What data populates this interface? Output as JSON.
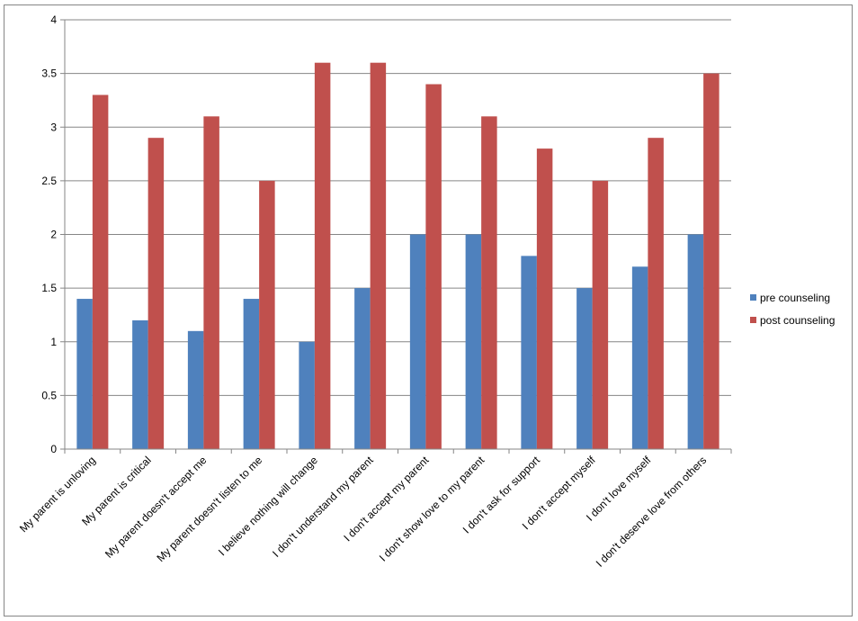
{
  "chart_data": {
    "type": "bar",
    "title": "",
    "xlabel": "",
    "ylabel": "",
    "ylim": [
      0,
      4
    ],
    "yticks": [
      "0",
      "0.5",
      "1",
      "1.5",
      "2",
      "2.5",
      "3",
      "3.5",
      "4"
    ],
    "grid": true,
    "legend_placement": "right",
    "categories": [
      "My parent is unloving",
      "My parent is critical",
      "My parent doesn't accept me",
      "My parent doesn't listen to me",
      "I believe nothing will change",
      "I don't understand my parent",
      "I don't accept my parent",
      "I don't show love to my parent",
      "I don't ask for support",
      "I don't accept myself",
      "I don't love myself",
      "I don't deserve love from others"
    ],
    "series": [
      {
        "name": "pre counseling",
        "color": "#4F81BD",
        "values": [
          1.4,
          1.2,
          1.1,
          1.4,
          1.0,
          1.5,
          2.0,
          2.0,
          1.8,
          1.5,
          1.7,
          2.0
        ]
      },
      {
        "name": "post counseling",
        "color": "#C0504D",
        "values": [
          3.3,
          2.9,
          3.1,
          2.5,
          3.6,
          3.6,
          3.4,
          3.1,
          2.8,
          2.5,
          2.9,
          3.5
        ]
      }
    ]
  }
}
